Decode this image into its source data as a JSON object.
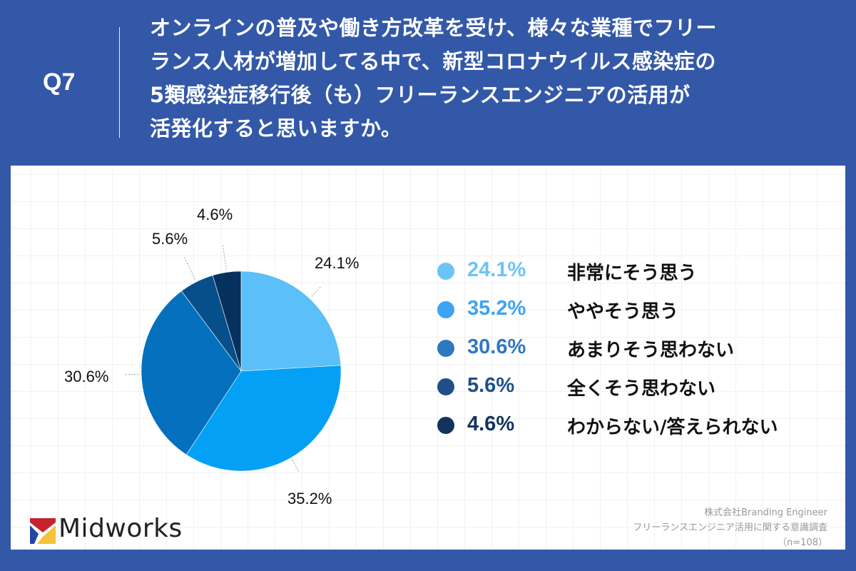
{
  "header": {
    "question_number": "Q7",
    "question_lines": [
      "オンラインの普及や働き方改革を受け、様々な業種でフリー",
      "ランス人材が増加してる中で、新型コロナウイルス感染症の",
      "5類感染症移行後（も）フリーランスエンジニアの活用が",
      "活発化すると思いますか。"
    ]
  },
  "chart_data": {
    "type": "pie",
    "title": "オンラインの普及や働き方改革を受け、様々な業種でフリーランス人材が増加してる中で、新型コロナウイルス感染症の5類感染症移行後（も）フリーランスエンジニアの活用が活発化すると思いますか。",
    "categories": [
      "非常にそう思う",
      "ややそう思う",
      "あまりそう思わない",
      "全くそう思わない",
      "わからない/答えられない"
    ],
    "values": [
      24.1,
      35.2,
      30.6,
      5.6,
      4.6
    ],
    "labels": [
      "24.1%",
      "35.2%",
      "30.6%",
      "5.6%",
      "4.6%"
    ],
    "colors": [
      "#5bbff8",
      "#03a0f5",
      "#0570bd",
      "#074f8a",
      "#06315f"
    ],
    "legend_colors": [
      "#6cc4f6",
      "#3ea3f2",
      "#2f78c0",
      "#1f4f88",
      "#13335f"
    ],
    "start_angle": "12 o'clock, clockwise",
    "legend_position": "right",
    "n": 108
  },
  "legend": [
    {
      "pct": "24.1%",
      "label": "非常にそう思う"
    },
    {
      "pct": "35.2%",
      "label": "ややそう思う"
    },
    {
      "pct": "30.6%",
      "label": "あまりそう思わない"
    },
    {
      "pct": "5.6%",
      "label": "全くそう思わない"
    },
    {
      "pct": "4.6%",
      "label": "わからない/答えられない"
    }
  ],
  "logo": {
    "text": "Midworks"
  },
  "source": {
    "company": "株式会社Branding Engineer",
    "survey": "フリーランスエンジニア活用に関する意識調査",
    "sample": "（n=108）"
  }
}
